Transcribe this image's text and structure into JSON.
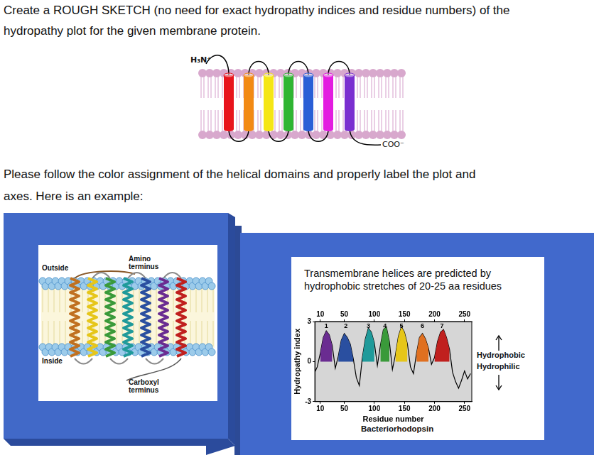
{
  "question": {
    "lines": [
      "Create a ROUGH SKETCH (no need for exact hydropathy indices and residue numbers) of the",
      "hydropathy plot for the given membrane protein."
    ]
  },
  "diagram": {
    "n_terminus": "H₃N⁺",
    "c_terminus": "COO⁻"
  },
  "instruction": {
    "lines": [
      "Please follow the color assignment of the helical domains and properly label the plot and",
      "axes.  Here is an example:"
    ]
  },
  "example": {
    "membrane_figure": {
      "outside": "Outside",
      "inside": "Inside",
      "amino_terminus": [
        "Amino",
        "terminus"
      ],
      "carboxyl_terminus": [
        "Carboxyl",
        "terminus"
      ]
    },
    "plot_heading": [
      "Transmembrane helices are predicted by",
      "hydrophobic stretches of 20-25 aa residues"
    ],
    "hydrophobic": "Hydrophobic",
    "hydrophilic": "Hydrophilic",
    "caption": "Bacteriorhodopsin"
  },
  "chart_data": {
    "type": "line",
    "x": [
      1,
      5,
      10,
      15,
      20,
      25,
      30,
      35,
      40,
      45,
      50,
      55,
      60,
      65,
      70,
      75,
      80,
      85,
      90,
      95,
      100,
      105,
      110,
      115,
      120,
      125,
      130,
      135,
      140,
      145,
      150,
      155,
      160,
      165,
      170,
      175,
      180,
      185,
      190,
      195,
      200,
      205,
      210,
      215,
      220,
      225,
      230,
      235,
      240,
      245,
      250,
      255,
      260
    ],
    "values": [
      -0.8,
      -0.4,
      0.6,
      1.8,
      2.3,
      2.0,
      1.2,
      -0.5,
      0.4,
      1.6,
      2.1,
      1.8,
      1.3,
      0.2,
      -1.2,
      -1.8,
      0.3,
      1.7,
      2.5,
      2.2,
      1.4,
      -0.3,
      1.2,
      2.4,
      2.6,
      1.5,
      -0.6,
      0.5,
      1.9,
      2.6,
      2.2,
      1.3,
      -0.4,
      -0.9,
      0.6,
      1.8,
      2.1,
      1.7,
      1.0,
      -0.2,
      0.3,
      1.5,
      2.2,
      2.4,
      1.8,
      0.9,
      -0.8,
      -1.5,
      -2.0,
      -1.4,
      -0.7,
      -1.3,
      -0.9
    ],
    "color": "#000000",
    "xlim": [
      1,
      262
    ],
    "xticks": [
      10,
      50,
      100,
      150,
      200,
      250
    ],
    "ylim": [
      -3,
      3
    ],
    "yticks": [
      -3,
      0,
      3
    ],
    "x_label": "Residue number",
    "y_label": "Hydropathy index",
    "grid": false,
    "helices": [
      {
        "label": "1",
        "start": 10,
        "end": 30,
        "color": "#6a2c91"
      },
      {
        "label": "2",
        "start": 40,
        "end": 65,
        "color": "#2a4fa0"
      },
      {
        "label": "3",
        "start": 80,
        "end": 100,
        "color": "#1f9a9a"
      },
      {
        "label": "4",
        "start": 110,
        "end": 125,
        "color": "#3a9a3a"
      },
      {
        "label": "5",
        "start": 135,
        "end": 155,
        "color": "#e6c619"
      },
      {
        "label": "6",
        "start": 170,
        "end": 190,
        "color": "#e07020"
      },
      {
        "label": "7",
        "start": 200,
        "end": 225,
        "color": "#c0201e"
      }
    ]
  }
}
